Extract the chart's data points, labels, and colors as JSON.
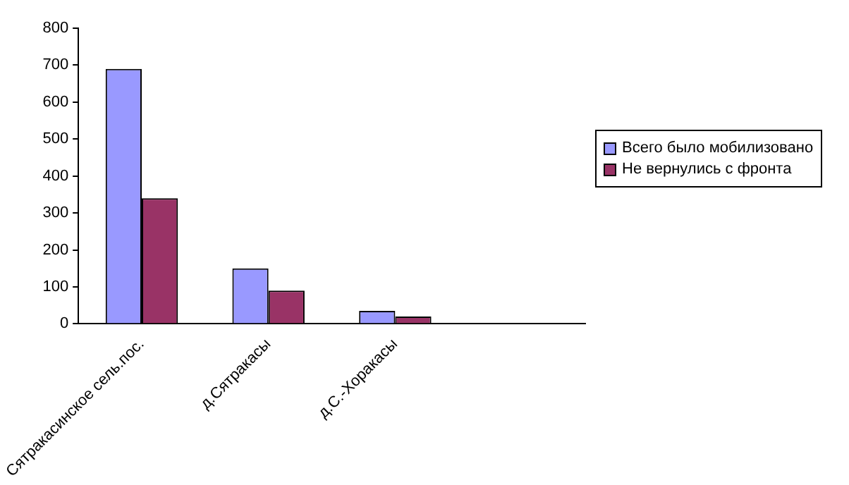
{
  "chart_data": {
    "type": "bar",
    "categories": [
      "Сятракасинское сель.пос.",
      "д.Сятракасы",
      "д.С.-Хоракасы",
      null
    ],
    "series": [
      {
        "name": "Всего было мобилизовано",
        "color": "#9999ff",
        "values": [
          690,
          150,
          35,
          null
        ]
      },
      {
        "name": "Не вернулись с фронта",
        "color": "#993366",
        "values": [
          340,
          90,
          20,
          null
        ]
      }
    ],
    "ylim": [
      0,
      800
    ],
    "yticks": [
      0,
      100,
      200,
      300,
      400,
      500,
      600,
      700,
      800
    ],
    "grid": false,
    "legend": "right"
  }
}
